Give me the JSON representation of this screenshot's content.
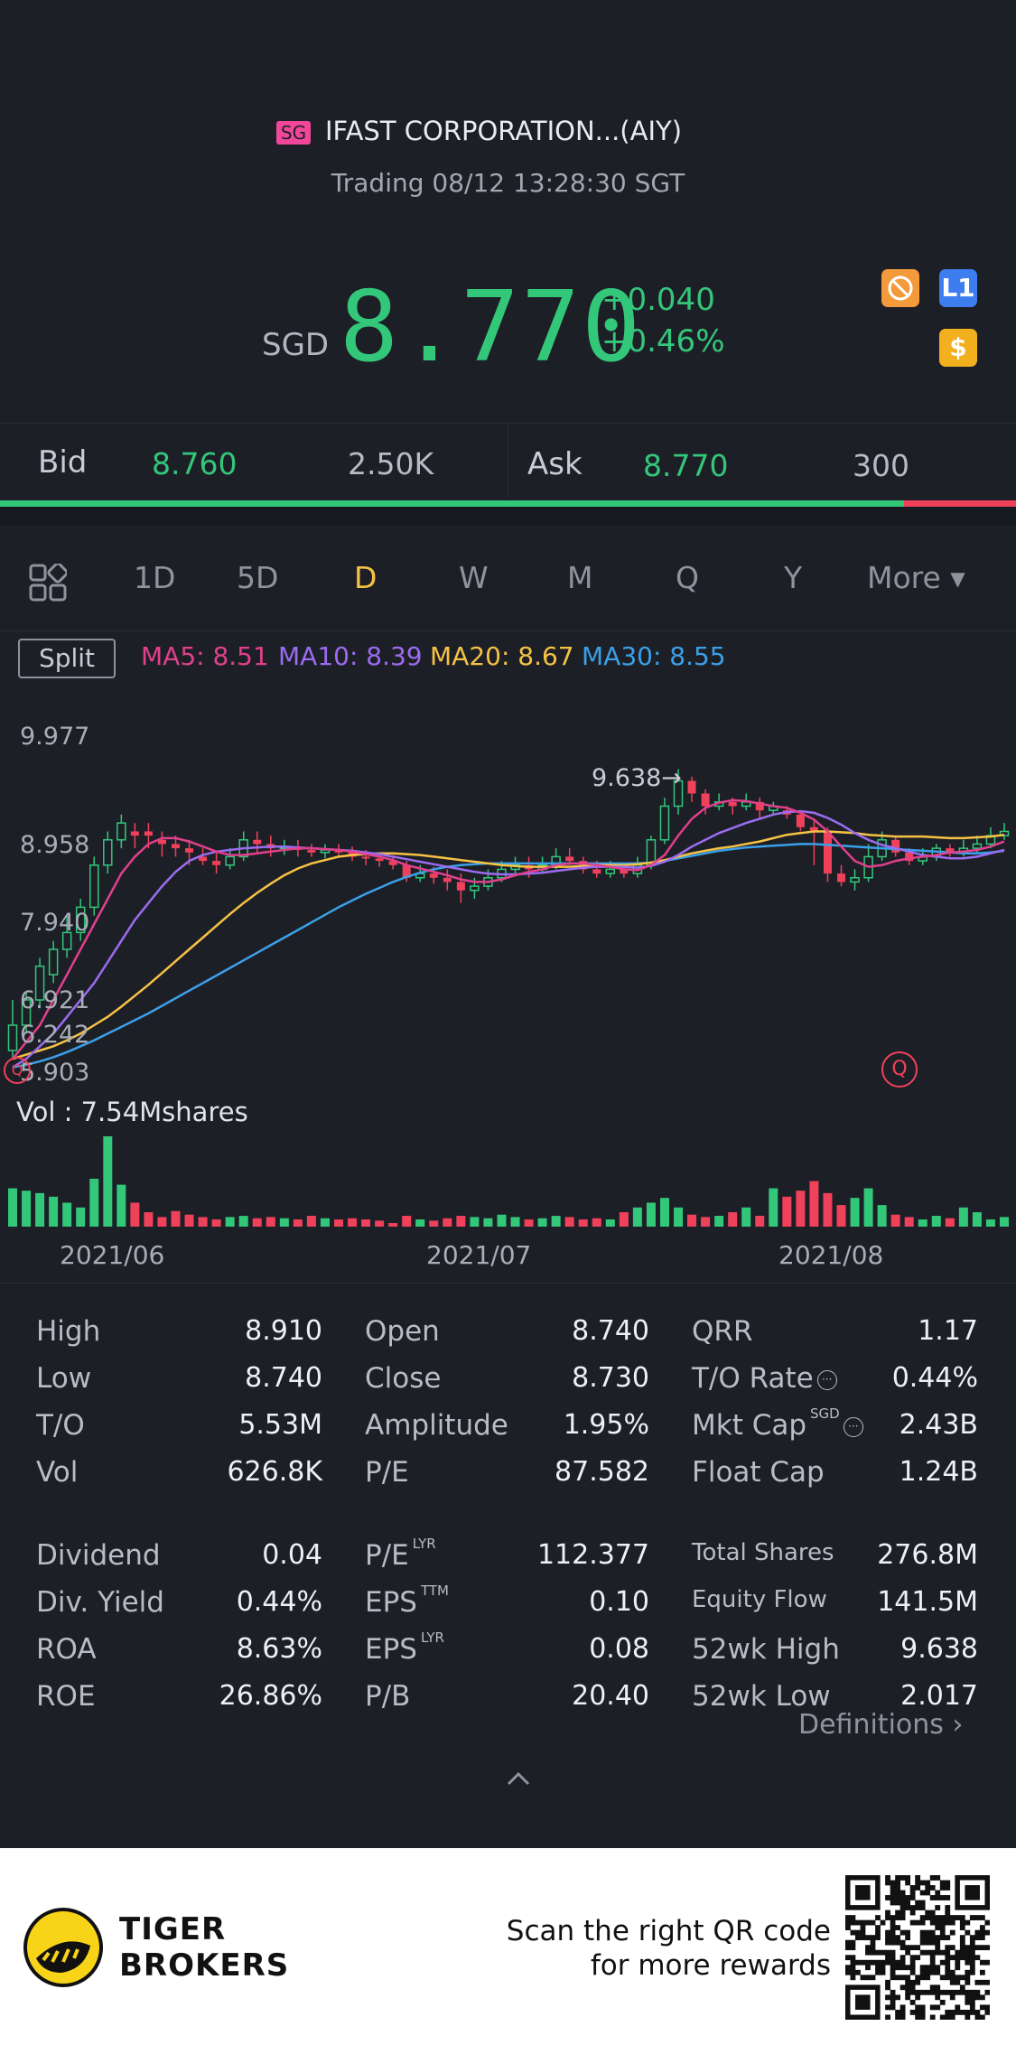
{
  "header": {
    "market_badge": "SG",
    "title": "IFAST CORPORATION...(AIY)",
    "status": "Trading 08/12 13:28:30 SGT",
    "currency": "SGD",
    "price": "8.770",
    "change": "+0.040",
    "change_pct": "+0.46%",
    "icons": [
      "no-trade-icon",
      "level1-icon",
      "dollar-icon"
    ],
    "level_icon_label": "L1",
    "dollar_icon_label": "$",
    "colors": {
      "up": "#33c77a",
      "down": "#f0415b",
      "accent": "#f6c244"
    }
  },
  "quote": {
    "bid_label": "Bid",
    "bid_price": "8.760",
    "bid_size": "2.50K",
    "ask_label": "Ask",
    "ask_price": "8.770",
    "ask_size": "300",
    "bid_ratio": 0.89
  },
  "tabs": {
    "items": [
      "1D",
      "5D",
      "D",
      "W",
      "M",
      "Q",
      "Y",
      "More ▾"
    ],
    "active": "D"
  },
  "legend": {
    "split_label": "Split",
    "ma5": "MA5: 8.51",
    "ma10": "MA10: 8.39",
    "ma20": "MA20: 8.67",
    "ma30": "MA30: 8.55",
    "colors": {
      "ma5": "#e0408c",
      "ma10": "#9b6cf0",
      "ma20": "#f6c244",
      "ma30": "#3aa0e8"
    }
  },
  "chart_data": {
    "type": "candlestick",
    "y_ticks": [
      "9.977",
      "8.958",
      "7.940",
      "6.921",
      "6.242",
      "5.903"
    ],
    "high_marker": "9.638→",
    "volume_label": "Vol  : 7.54Mshares",
    "x_ticks": [
      "2021/06",
      "2021/07",
      "2021/08"
    ],
    "marker_label": "Q",
    "ylim": [
      5.903,
      9.977
    ],
    "candles": [
      [
        6.3,
        6.6,
        6.9,
        6.2
      ],
      [
        6.6,
        6.9,
        7.0,
        6.5
      ],
      [
        6.9,
        7.3,
        7.4,
        6.8
      ],
      [
        7.2,
        7.5,
        7.6,
        7.1
      ],
      [
        7.5,
        7.7,
        7.9,
        7.4
      ],
      [
        7.7,
        8.0,
        8.1,
        7.6
      ],
      [
        8.0,
        8.5,
        8.6,
        7.9
      ],
      [
        8.5,
        8.8,
        8.9,
        8.4
      ],
      [
        8.8,
        9.0,
        9.1,
        8.7
      ],
      [
        8.9,
        8.85,
        9.0,
        8.7
      ],
      [
        8.9,
        8.85,
        9.0,
        8.7
      ],
      [
        8.8,
        8.75,
        8.9,
        8.6
      ],
      [
        8.75,
        8.7,
        8.85,
        8.6
      ],
      [
        8.7,
        8.65,
        8.8,
        8.5
      ],
      [
        8.6,
        8.55,
        8.7,
        8.5
      ],
      [
        8.55,
        8.5,
        8.65,
        8.4
      ],
      [
        8.5,
        8.6,
        8.7,
        8.45
      ],
      [
        8.6,
        8.8,
        8.9,
        8.55
      ],
      [
        8.8,
        8.75,
        8.9,
        8.65
      ],
      [
        8.75,
        8.7,
        8.85,
        8.6
      ],
      [
        8.7,
        8.72,
        8.8,
        8.62
      ],
      [
        8.72,
        8.68,
        8.8,
        8.6
      ],
      [
        8.68,
        8.65,
        8.75,
        8.6
      ],
      [
        8.65,
        8.68,
        8.75,
        8.58
      ],
      [
        8.68,
        8.65,
        8.75,
        8.6
      ],
      [
        8.65,
        8.6,
        8.72,
        8.55
      ],
      [
        8.6,
        8.58,
        8.68,
        8.5
      ],
      [
        8.58,
        8.55,
        8.65,
        8.48
      ],
      [
        8.55,
        8.5,
        8.62,
        8.45
      ],
      [
        8.5,
        8.35,
        8.55,
        8.3
      ],
      [
        8.35,
        8.4,
        8.5,
        8.3
      ],
      [
        8.4,
        8.35,
        8.48,
        8.28
      ],
      [
        8.35,
        8.3,
        8.45,
        8.2
      ],
      [
        8.3,
        8.2,
        8.4,
        8.05
      ],
      [
        8.2,
        8.25,
        8.35,
        8.1
      ],
      [
        8.25,
        8.35,
        8.45,
        8.2
      ],
      [
        8.35,
        8.45,
        8.55,
        8.3
      ],
      [
        8.45,
        8.5,
        8.6,
        8.4
      ],
      [
        8.5,
        8.45,
        8.6,
        8.35
      ],
      [
        8.45,
        8.5,
        8.6,
        8.4
      ],
      [
        8.5,
        8.6,
        8.7,
        8.45
      ],
      [
        8.6,
        8.55,
        8.7,
        8.5
      ],
      [
        8.55,
        8.45,
        8.6,
        8.4
      ],
      [
        8.45,
        8.4,
        8.55,
        8.35
      ],
      [
        8.4,
        8.45,
        8.55,
        8.35
      ],
      [
        8.45,
        8.4,
        8.5,
        8.35
      ],
      [
        8.4,
        8.5,
        8.6,
        8.35
      ],
      [
        8.5,
        8.8,
        8.85,
        8.45
      ],
      [
        8.8,
        9.2,
        9.3,
        8.75
      ],
      [
        9.2,
        9.5,
        9.638,
        9.1
      ],
      [
        9.5,
        9.35,
        9.55,
        9.25
      ],
      [
        9.35,
        9.2,
        9.4,
        9.1
      ],
      [
        9.2,
        9.25,
        9.35,
        9.15
      ],
      [
        9.25,
        9.2,
        9.3,
        9.1
      ],
      [
        9.2,
        9.25,
        9.35,
        9.15
      ],
      [
        9.25,
        9.15,
        9.3,
        9.05
      ],
      [
        9.15,
        9.2,
        9.25,
        9.1
      ],
      [
        9.15,
        9.1,
        9.2,
        9.05
      ],
      [
        9.1,
        8.95,
        9.15,
        8.9
      ],
      [
        8.95,
        8.9,
        9.05,
        8.5
      ],
      [
        8.9,
        8.4,
        8.95,
        8.3
      ],
      [
        8.4,
        8.3,
        8.5,
        8.25
      ],
      [
        8.3,
        8.35,
        8.45,
        8.2
      ],
      [
        8.35,
        8.6,
        8.75,
        8.3
      ],
      [
        8.6,
        8.8,
        8.9,
        8.55
      ],
      [
        8.8,
        8.65,
        8.85,
        8.6
      ],
      [
        8.65,
        8.55,
        8.7,
        8.5
      ],
      [
        8.55,
        8.6,
        8.7,
        8.5
      ],
      [
        8.6,
        8.7,
        8.75,
        8.55
      ],
      [
        8.7,
        8.65,
        8.75,
        8.6
      ],
      [
        8.65,
        8.7,
        8.8,
        8.6
      ],
      [
        8.7,
        8.75,
        8.85,
        8.65
      ],
      [
        8.75,
        8.85,
        8.95,
        8.7
      ],
      [
        8.85,
        8.9,
        9.0,
        8.8
      ]
    ],
    "volumes": [
      3.2,
      3.0,
      2.8,
      2.5,
      2.0,
      1.6,
      4.0,
      7.54,
      3.5,
      2.0,
      1.2,
      0.8,
      1.3,
      1.0,
      0.8,
      0.6,
      0.8,
      0.9,
      0.7,
      0.8,
      0.7,
      0.6,
      0.9,
      0.7,
      0.6,
      0.7,
      0.6,
      0.5,
      0.3,
      0.9,
      0.6,
      0.5,
      0.7,
      0.9,
      0.8,
      0.7,
      1.0,
      0.8,
      0.6,
      0.7,
      0.9,
      0.8,
      0.6,
      0.7,
      0.6,
      1.2,
      1.6,
      2.0,
      2.4,
      1.6,
      1.0,
      0.8,
      0.9,
      1.2,
      1.6,
      0.9,
      3.2,
      2.5,
      3.0,
      3.8,
      2.8,
      1.8,
      2.4,
      3.2,
      1.8,
      1.0,
      0.8,
      0.6,
      0.9,
      0.7,
      1.6,
      1.2,
      0.6,
      0.8
    ],
    "volume_up": [
      true,
      true,
      true,
      true,
      true,
      true,
      true,
      true,
      true,
      false,
      false,
      false,
      false,
      false,
      false,
      false,
      true,
      true,
      false,
      false,
      true,
      false,
      false,
      true,
      false,
      false,
      false,
      false,
      false,
      false,
      true,
      false,
      false,
      false,
      true,
      true,
      true,
      true,
      false,
      true,
      true,
      false,
      false,
      false,
      true,
      false,
      true,
      true,
      true,
      true,
      false,
      false,
      true,
      false,
      true,
      false,
      true,
      false,
      false,
      false,
      false,
      false,
      true,
      true,
      true,
      false,
      false,
      true,
      true,
      false,
      true,
      true,
      true,
      true
    ],
    "ma5": [
      6.2,
      6.4,
      6.6,
      6.9,
      7.2,
      7.5,
      7.8,
      8.1,
      8.4,
      8.6,
      8.75,
      8.82,
      8.82,
      8.78,
      8.72,
      8.66,
      8.62,
      8.62,
      8.64,
      8.66,
      8.68,
      8.7,
      8.7,
      8.69,
      8.68,
      8.66,
      8.63,
      8.6,
      8.56,
      8.5,
      8.46,
      8.42,
      8.38,
      8.33,
      8.3,
      8.3,
      8.33,
      8.38,
      8.42,
      8.45,
      8.5,
      8.52,
      8.52,
      8.5,
      8.48,
      8.45,
      8.44,
      8.5,
      8.62,
      8.85,
      9.05,
      9.18,
      9.24,
      9.27,
      9.26,
      9.23,
      9.2,
      9.18,
      9.12,
      9.04,
      8.9,
      8.72,
      8.55,
      8.48,
      8.5,
      8.55,
      8.58,
      8.6,
      8.62,
      8.65,
      8.66,
      8.68,
      8.72,
      8.78
    ],
    "ma10": [
      6.1,
      6.2,
      6.35,
      6.5,
      6.7,
      6.9,
      7.1,
      7.35,
      7.6,
      7.85,
      8.05,
      8.25,
      8.42,
      8.55,
      8.62,
      8.66,
      8.68,
      8.7,
      8.71,
      8.72,
      8.72,
      8.71,
      8.7,
      8.69,
      8.68,
      8.67,
      8.65,
      8.63,
      8.6,
      8.57,
      8.54,
      8.51,
      8.48,
      8.45,
      8.42,
      8.4,
      8.39,
      8.39,
      8.4,
      8.41,
      8.43,
      8.45,
      8.47,
      8.48,
      8.48,
      8.48,
      8.47,
      8.49,
      8.54,
      8.62,
      8.72,
      8.8,
      8.88,
      8.94,
      9.0,
      9.05,
      9.1,
      9.13,
      9.14,
      9.12,
      9.06,
      8.98,
      8.88,
      8.8,
      8.74,
      8.7,
      8.66,
      8.62,
      8.6,
      8.58,
      8.58,
      8.6,
      8.64,
      8.68
    ],
    "ma20": [
      6.2,
      6.25,
      6.3,
      6.35,
      6.42,
      6.5,
      6.6,
      6.7,
      6.82,
      6.95,
      7.08,
      7.22,
      7.36,
      7.5,
      7.64,
      7.78,
      7.92,
      8.05,
      8.17,
      8.28,
      8.38,
      8.46,
      8.52,
      8.56,
      8.6,
      8.62,
      8.63,
      8.64,
      8.64,
      8.63,
      8.62,
      8.6,
      8.58,
      8.56,
      8.54,
      8.52,
      8.5,
      8.49,
      8.48,
      8.48,
      8.48,
      8.48,
      8.49,
      8.5,
      8.5,
      8.5,
      8.51,
      8.53,
      8.56,
      8.6,
      8.64,
      8.67,
      8.7,
      8.72,
      8.75,
      8.78,
      8.82,
      8.86,
      8.88,
      8.9,
      8.9,
      8.89,
      8.88,
      8.86,
      8.85,
      8.84,
      8.84,
      8.84,
      8.83,
      8.82,
      8.82,
      8.83,
      8.84,
      8.86
    ],
    "ma30": [
      6.1,
      6.13,
      6.17,
      6.22,
      6.28,
      6.35,
      6.42,
      6.5,
      6.58,
      6.66,
      6.74,
      6.83,
      6.92,
      7.01,
      7.1,
      7.19,
      7.28,
      7.37,
      7.46,
      7.55,
      7.64,
      7.73,
      7.82,
      7.91,
      8.0,
      8.08,
      8.16,
      8.23,
      8.3,
      8.36,
      8.41,
      8.45,
      8.48,
      8.5,
      8.51,
      8.52,
      8.52,
      8.52,
      8.52,
      8.52,
      8.52,
      8.52,
      8.52,
      8.52,
      8.52,
      8.52,
      8.52,
      8.53,
      8.55,
      8.58,
      8.61,
      8.64,
      8.67,
      8.69,
      8.71,
      8.72,
      8.73,
      8.74,
      8.75,
      8.75,
      8.74,
      8.73,
      8.72,
      8.71,
      8.7,
      8.69,
      8.68,
      8.67,
      8.66,
      8.65,
      8.64,
      8.64,
      8.65,
      8.67
    ]
  },
  "stats": {
    "col1": [
      {
        "label": "High",
        "value": "8.910"
      },
      {
        "label": "Low",
        "value": "8.740"
      },
      {
        "label": "T/O",
        "value": "5.53M"
      },
      {
        "label": "Vol",
        "value": "626.8K"
      },
      {
        "label": "Dividend",
        "value": "0.04"
      },
      {
        "label": "Div. Yield",
        "value": "0.44%"
      },
      {
        "label": "ROA",
        "value": "8.63%"
      },
      {
        "label": "ROE",
        "value": "26.86%"
      }
    ],
    "col2": [
      {
        "label": "Open",
        "value": "8.740",
        "sup": ""
      },
      {
        "label": "Close",
        "value": "8.730",
        "sup": ""
      },
      {
        "label": "Amplitude",
        "value": "1.95%",
        "sup": ""
      },
      {
        "label": "P/E",
        "value": "87.582",
        "sup": ""
      },
      {
        "label": "P/E",
        "value": "112.377",
        "sup": "LYR"
      },
      {
        "label": "EPS",
        "value": "0.10",
        "sup": "TTM"
      },
      {
        "label": "EPS",
        "value": "0.08",
        "sup": "LYR"
      },
      {
        "label": "P/B",
        "value": "20.40",
        "sup": ""
      }
    ],
    "col3": [
      {
        "label": "QRR",
        "value": "1.17",
        "sup": ""
      },
      {
        "label": "T/O Rate",
        "value": "0.44%",
        "sup": ""
      },
      {
        "label": "Mkt Cap",
        "value": "2.43B",
        "sup": "SGD"
      },
      {
        "label": "Float Cap",
        "value": "1.24B",
        "sup": ""
      },
      {
        "label": "Total Shares",
        "value": "276.8M",
        "sup": ""
      },
      {
        "label": "Equity Flow",
        "value": "141.5M",
        "sup": ""
      },
      {
        "label": "52wk High",
        "value": "9.638",
        "sup": ""
      },
      {
        "label": "52wk Low",
        "value": "2.017",
        "sup": ""
      }
    ],
    "info_glyph": "···",
    "definitions": "Definitions ›"
  },
  "footer": {
    "brand_line1": "TIGER",
    "brand_line2": "BROKERS",
    "promo_line1": "Scan the right QR code",
    "promo_line2": "for more rewards"
  }
}
